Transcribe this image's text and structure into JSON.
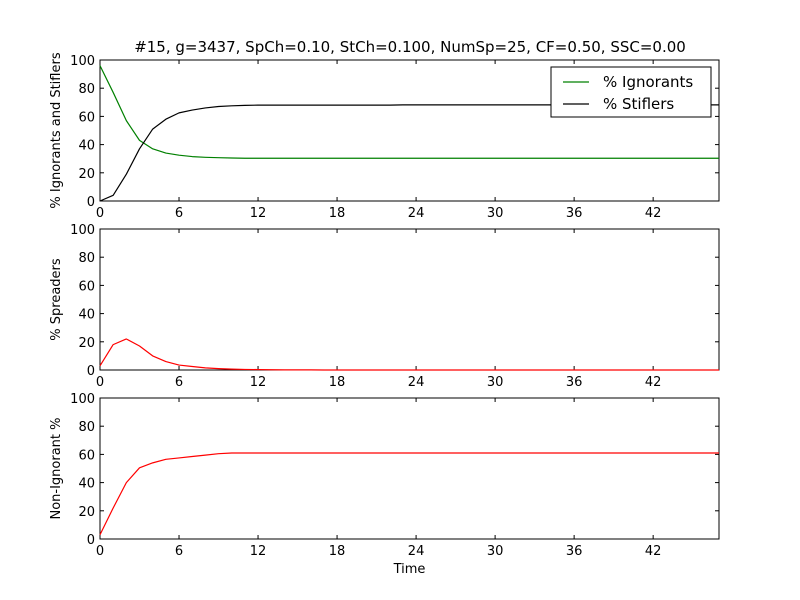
{
  "figure": {
    "title": "#15, g=3437, SpCh=0.10, StCh=0.100, NumSp=25, CF=0.50, SSC=0.00"
  },
  "chart_data": [
    {
      "type": "line",
      "title": "#15, g=3437, SpCh=0.10, StCh=0.100, NumSp=25, CF=0.50, SSC=0.00",
      "xlabel": "",
      "ylabel": "% Ignorants and Stiflers",
      "xlim": [
        0,
        47
      ],
      "ylim": [
        0,
        100
      ],
      "xticks": [
        "0",
        "6",
        "12",
        "18",
        "24",
        "30",
        "36",
        "42"
      ],
      "yticks": [
        "0",
        "20",
        "40",
        "60",
        "80",
        "100"
      ],
      "legend": "top-right",
      "x": [
        0,
        1,
        2,
        3,
        4,
        5,
        6,
        7,
        8,
        9,
        10,
        11,
        12,
        13,
        14,
        15,
        16,
        17,
        18,
        19,
        20,
        21,
        22,
        23,
        24,
        25,
        26,
        27,
        28,
        29,
        30,
        31,
        32,
        33,
        34,
        35,
        36,
        37,
        38,
        39,
        40,
        41,
        42,
        43,
        44,
        45,
        46,
        47
      ],
      "series": [
        {
          "name": "% Ignorants",
          "color": "#008000",
          "values": [
            96,
            77,
            57,
            43,
            37,
            34,
            32.5,
            31.5,
            31,
            30.7,
            30.5,
            30.3,
            30.3,
            30.3,
            30.3,
            30.3,
            30.3,
            30.3,
            30.3,
            30.3,
            30.3,
            30.3,
            30.3,
            30.3,
            30.3,
            30.3,
            30.3,
            30.3,
            30.3,
            30.3,
            30.3,
            30.3,
            30.3,
            30.3,
            30.3,
            30.3,
            30.3,
            30.3,
            30.3,
            30.3,
            30.3,
            30.3,
            30.3,
            30.3,
            30.3,
            30.3,
            30.3,
            30.3
          ]
        },
        {
          "name": "% Stiflers",
          "color": "#000000",
          "values": [
            0,
            4,
            19,
            37,
            51,
            58,
            62.5,
            64.5,
            66,
            67,
            67.5,
            67.8,
            68,
            68,
            68,
            68,
            68,
            68,
            68,
            68,
            68,
            68,
            68,
            68.2,
            68.2,
            68.2,
            68.2,
            68.2,
            68.2,
            68.2,
            68.2,
            68.2,
            68.2,
            68.2,
            68.2,
            68.2,
            68.2,
            68.2,
            68.2,
            68.2,
            68.2,
            68.2,
            68.2,
            68.2,
            68.2,
            68.2,
            68.2,
            68.2
          ]
        }
      ]
    },
    {
      "type": "line",
      "xlabel": "",
      "ylabel": "% Spreaders",
      "xlim": [
        0,
        47
      ],
      "ylim": [
        0,
        100
      ],
      "xticks": [
        "0",
        "6",
        "12",
        "18",
        "24",
        "30",
        "36",
        "42"
      ],
      "yticks": [
        "0",
        "20",
        "40",
        "60",
        "80",
        "100"
      ],
      "x": [
        0,
        1,
        2,
        3,
        4,
        5,
        6,
        7,
        8,
        9,
        10,
        11,
        12,
        13,
        14,
        15,
        16,
        17,
        18,
        19,
        20,
        21,
        22,
        23,
        24,
        25,
        26,
        27,
        28,
        29,
        30,
        31,
        32,
        33,
        34,
        35,
        36,
        37,
        38,
        39,
        40,
        41,
        42,
        43,
        44,
        45,
        46,
        47
      ],
      "series": [
        {
          "color": "#ff0000",
          "values": [
            3,
            18,
            22,
            17,
            10,
            6,
            3.5,
            2.5,
            1.5,
            1,
            0.6,
            0.4,
            0.3,
            0.2,
            0.1,
            0.1,
            0.1,
            0,
            0,
            0,
            0,
            0,
            0,
            0,
            0,
            0,
            0,
            0,
            0,
            0,
            0,
            0,
            0,
            0,
            0,
            0,
            0,
            0,
            0,
            0,
            0,
            0,
            0,
            0,
            0,
            0,
            0,
            0
          ]
        }
      ]
    },
    {
      "type": "line",
      "xlabel": "Time",
      "ylabel": "Non-Ignorant %",
      "xlim": [
        0,
        47
      ],
      "ylim": [
        0,
        100
      ],
      "xticks": [
        "0",
        "6",
        "12",
        "18",
        "24",
        "30",
        "36",
        "42"
      ],
      "yticks": [
        "0",
        "20",
        "40",
        "60",
        "80",
        "100"
      ],
      "x": [
        0,
        1,
        2,
        3,
        4,
        5,
        6,
        7,
        8,
        9,
        10,
        11,
        12,
        13,
        14,
        15,
        16,
        17,
        18,
        19,
        20,
        21,
        22,
        23,
        24,
        25,
        26,
        27,
        28,
        29,
        30,
        31,
        32,
        33,
        34,
        35,
        36,
        37,
        38,
        39,
        40,
        41,
        42,
        43,
        44,
        45,
        46,
        47
      ],
      "series": [
        {
          "color": "#ff0000",
          "values": [
            3,
            22,
            40,
            50.5,
            54,
            56.5,
            57.5,
            58.5,
            59.5,
            60.5,
            61,
            61,
            61,
            61,
            61,
            61,
            61,
            61,
            61,
            61,
            61,
            61,
            61,
            61,
            61,
            61,
            61,
            61,
            61,
            61,
            61,
            61,
            61,
            61,
            61,
            61,
            61,
            61,
            61,
            61,
            61,
            61,
            61,
            61,
            61,
            61,
            61,
            61
          ]
        }
      ]
    }
  ]
}
